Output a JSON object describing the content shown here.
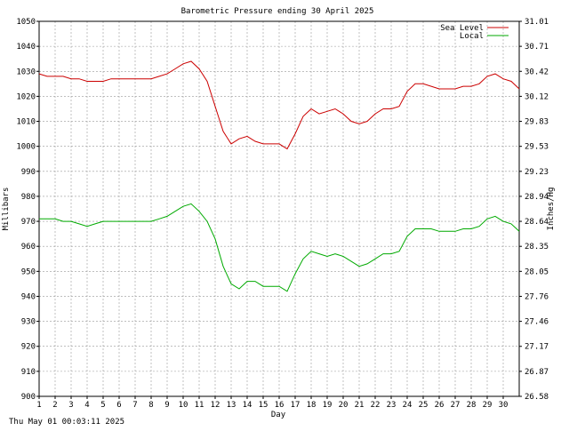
{
  "chart_data": {
    "type": "line",
    "title": "Barometric Pressure ending 30 April 2025",
    "xlabel": "Day",
    "ylabel": "Millibars",
    "ylabel_right": "Inches/Hg",
    "timestamp": "Thu May 01 00:03:11 2025",
    "xlim": [
      1,
      31
    ],
    "ylim": [
      900,
      1050
    ],
    "x_ticks": [
      "1",
      "2",
      "3",
      "4",
      "5",
      "6",
      "7",
      "8",
      "9",
      "10",
      "11",
      "12",
      "13",
      "14",
      "15",
      "16",
      "17",
      "18",
      "19",
      "20",
      "21",
      "22",
      "23",
      "24",
      "25",
      "26",
      "27",
      "28",
      "29",
      "30"
    ],
    "y_ticks": [
      "900",
      "910",
      "920",
      "930",
      "940",
      "950",
      "960",
      "970",
      "980",
      "990",
      "1000",
      "1010",
      "1020",
      "1030",
      "1040",
      "1050"
    ],
    "y_ticks_right": [
      "26.58",
      "26.87",
      "27.17",
      "27.46",
      "27.76",
      "28.05",
      "28.35",
      "28.64",
      "28.94",
      "29.23",
      "29.53",
      "29.83",
      "30.12",
      "30.42",
      "30.71",
      "31.01"
    ],
    "grid": true,
    "legend": "top-right",
    "series": [
      {
        "name": "Sea Level",
        "color": "#cc0000",
        "x": [
          1,
          1.5,
          2,
          2.5,
          3,
          3.5,
          4,
          4.5,
          5,
          5.5,
          6,
          6.5,
          7,
          7.5,
          8,
          8.5,
          9,
          9.5,
          10,
          10.5,
          11,
          11.5,
          12,
          12.5,
          13,
          13.5,
          14,
          14.5,
          15,
          15.5,
          16,
          16.5,
          17,
          17.5,
          18,
          18.5,
          19,
          19.5,
          20,
          20.5,
          21,
          21.5,
          22,
          22.5,
          23,
          23.5,
          24,
          24.5,
          25,
          25.5,
          26,
          26.5,
          27,
          27.5,
          28,
          28.5,
          29,
          29.5,
          30,
          30.5,
          31
        ],
        "values": [
          1029,
          1028,
          1028,
          1028,
          1027,
          1027,
          1026,
          1026,
          1026,
          1027,
          1027,
          1027,
          1027,
          1027,
          1027,
          1028,
          1029,
          1031,
          1033,
          1034,
          1031,
          1026,
          1016,
          1006,
          1001,
          1003,
          1004,
          1002,
          1001,
          1001,
          1001,
          999,
          1005,
          1012,
          1015,
          1013,
          1014,
          1015,
          1013,
          1010,
          1009,
          1010,
          1013,
          1015,
          1015,
          1016,
          1022,
          1025,
          1025,
          1024,
          1023,
          1023,
          1023,
          1024,
          1024,
          1025,
          1028,
          1029,
          1027,
          1026,
          1023
        ]
      },
      {
        "name": "Local",
        "color": "#00aa00",
        "x": [
          1,
          1.5,
          2,
          2.5,
          3,
          3.5,
          4,
          4.5,
          5,
          5.5,
          6,
          6.5,
          7,
          7.5,
          8,
          8.5,
          9,
          9.5,
          10,
          10.5,
          11,
          11.5,
          12,
          12.5,
          13,
          13.5,
          14,
          14.5,
          15,
          15.5,
          16,
          16.5,
          17,
          17.5,
          18,
          18.5,
          19,
          19.5,
          20,
          20.5,
          21,
          21.5,
          22,
          22.5,
          23,
          23.5,
          24,
          24.5,
          25,
          25.5,
          26,
          26.5,
          27,
          27.5,
          28,
          28.5,
          29,
          29.5,
          30,
          30.5,
          31
        ],
        "values": [
          971,
          971,
          971,
          970,
          970,
          969,
          968,
          969,
          970,
          970,
          970,
          970,
          970,
          970,
          970,
          971,
          972,
          974,
          976,
          977,
          974,
          970,
          963,
          952,
          945,
          943,
          946,
          946,
          944,
          944,
          944,
          942,
          949,
          955,
          958,
          957,
          956,
          957,
          956,
          954,
          952,
          953,
          955,
          957,
          957,
          958,
          964,
          967,
          967,
          967,
          966,
          966,
          966,
          967,
          967,
          968,
          971,
          972,
          970,
          969,
          966
        ]
      }
    ]
  }
}
